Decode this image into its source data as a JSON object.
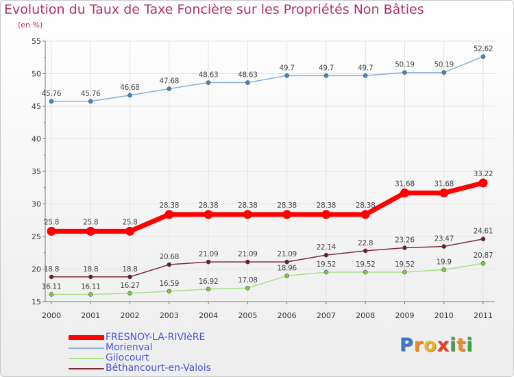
{
  "chart_data": {
    "type": "line",
    "title": "Evolution du Taux de Taxe Foncière sur les Propriétés Non Bâties",
    "ylabel": "(en %)",
    "xlabel": "",
    "categories": [
      "2000",
      "2001",
      "2002",
      "2003",
      "2004",
      "2005",
      "2006",
      "2007",
      "2008",
      "2009",
      "2010",
      "2011"
    ],
    "ylim": [
      15,
      55
    ],
    "yticks": [
      "15",
      "20",
      "25",
      "30",
      "35",
      "40",
      "45",
      "50",
      "55"
    ],
    "series": [
      {
        "name": "Morienval",
        "color": "#88aedc",
        "marker": "#3d86cb",
        "values": [
          45.76,
          45.76,
          46.68,
          47.68,
          48.63,
          48.63,
          49.7,
          49.7,
          49.7,
          50.19,
          50.19,
          52.62
        ],
        "labels": [
          "45.76",
          "45.76",
          "46.68",
          "47.68",
          "48.63",
          "48.63",
          "49.7",
          "49.7",
          "49.7",
          "50.19",
          "50.19",
          "52.62"
        ]
      },
      {
        "name": "Béthancourt-en-Valois",
        "color": "#7b2d36",
        "marker": "#6b1e26",
        "values": [
          18.8,
          18.8,
          18.8,
          20.68,
          21.09,
          21.09,
          21.09,
          22.14,
          22.8,
          23.26,
          23.47,
          24.61
        ],
        "labels": [
          "18.8",
          "18.8",
          "18.8",
          "20.68",
          "21.09",
          "21.09",
          "21.09",
          "22.14",
          "22.8",
          "23.26",
          "23.47",
          "24.61"
        ]
      },
      {
        "name": "Gilocourt",
        "color": "#a6e08a",
        "marker": "#7ccd3c",
        "values": [
          16.11,
          16.11,
          16.27,
          16.59,
          16.92,
          17.08,
          18.96,
          19.52,
          19.52,
          19.52,
          19.9,
          20.87
        ],
        "labels": [
          "16.11",
          "16.11",
          "16.27",
          "16.59",
          "16.92",
          "17.08",
          "18.96",
          "19.52",
          "19.52",
          "19.52",
          "19.9",
          "20.87"
        ]
      },
      {
        "name": "FRESNOY-LA-RIVIèRE",
        "color": "#ff0000",
        "marker": "#ff0000",
        "values": [
          25.8,
          25.8,
          25.8,
          28.38,
          28.38,
          28.38,
          28.38,
          28.38,
          28.38,
          31.68,
          31.68,
          33.22
        ],
        "labels": [
          "25.8",
          "25.8",
          "25.8",
          "28.38",
          "28.38",
          "28.38",
          "28.38",
          "28.38",
          "28.38",
          "31.68",
          "31.68",
          "33.22"
        ]
      }
    ]
  },
  "legend": [
    {
      "label": "FRESNOY-LA-RIVIèRE",
      "color": "#ff0000"
    },
    {
      "label": "Morienval",
      "color": "#88aedc"
    },
    {
      "label": "Gilocourt",
      "color": "#a6e08a"
    },
    {
      "label": "Béthancourt-en-Valois",
      "color": "#7b2d36"
    }
  ],
  "logo": {
    "letters": [
      "P",
      "r",
      "o",
      "x",
      "i",
      "t",
      "i"
    ],
    "colors": [
      "#3a78c8",
      "#f08a1c",
      "#e8b51c",
      "#e0402a",
      "#3aa34a",
      "#f08a1c",
      "#3aa34a"
    ]
  }
}
